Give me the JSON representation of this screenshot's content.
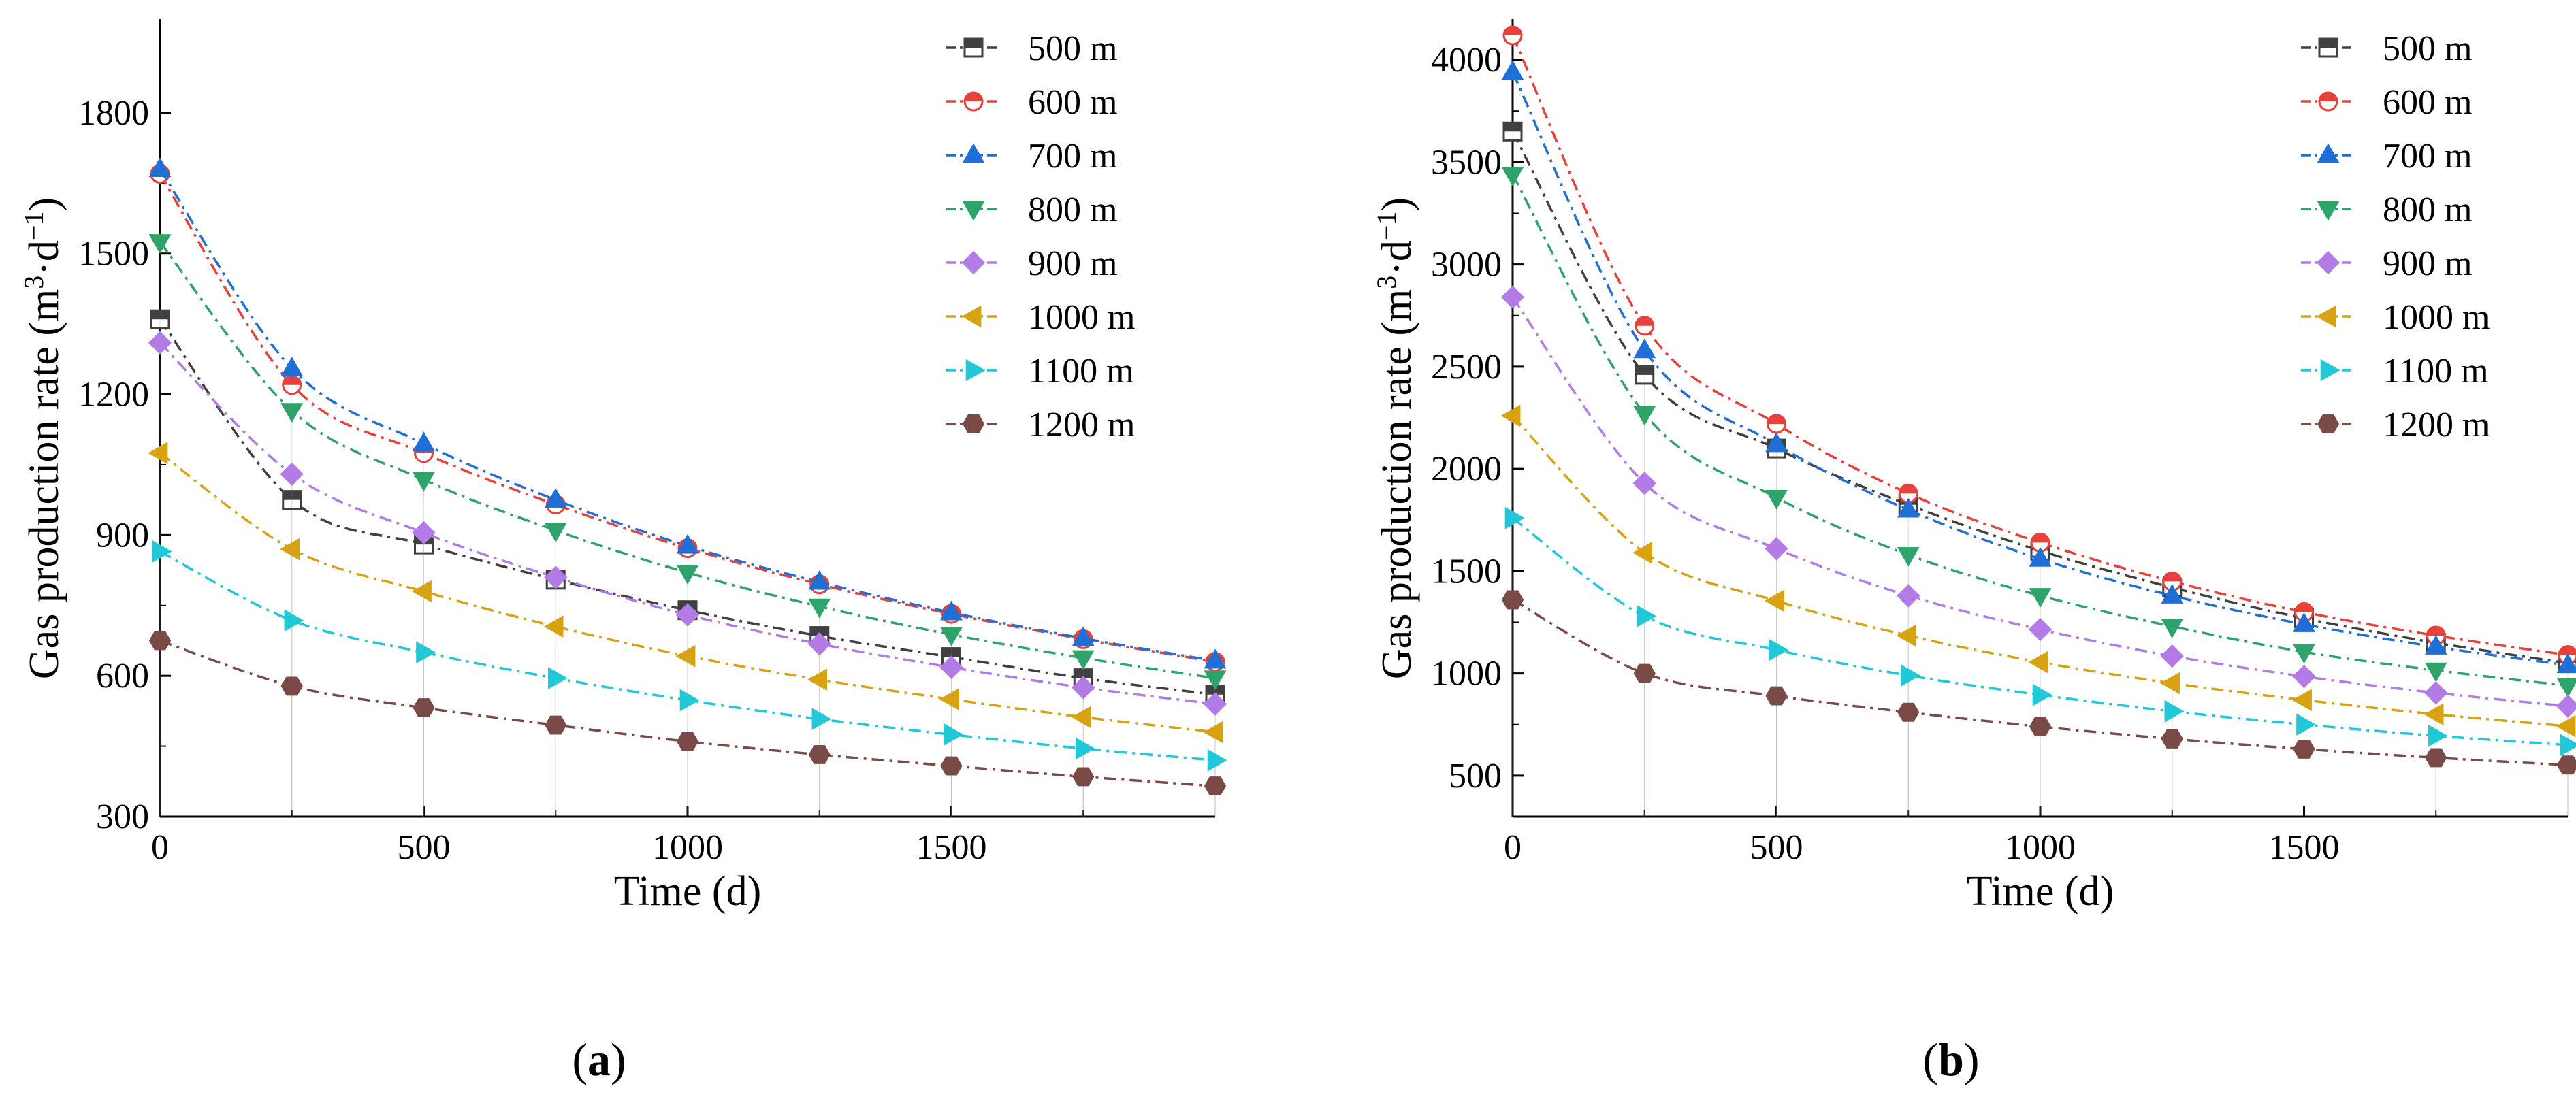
{
  "figure": {
    "panels": [
      "(a)",
      "(b)"
    ]
  },
  "chart_data": [
    {
      "type": "line",
      "panel_label": "(a)",
      "xlabel": "Time (d)",
      "ylabel_prefix": "Gas production rate (m",
      "ylabel_sup1": "3",
      "ylabel_mid": "·d",
      "ylabel_sup2": "−1",
      "ylabel_suffix": ")",
      "xlim": [
        0,
        2000
      ],
      "ylim": [
        300,
        2000
      ],
      "xticks": [
        0,
        500,
        1000,
        1500
      ],
      "yticks": [
        300,
        600,
        900,
        1200,
        1500,
        1800
      ],
      "x": [
        0,
        250,
        500,
        750,
        1000,
        1250,
        1500,
        1750,
        2000
      ],
      "series": [
        {
          "name": "500 m",
          "color": "#404040",
          "marker": "square",
          "values": [
            1360,
            975,
            880,
            805,
            740,
            685,
            640,
            595,
            560
          ]
        },
        {
          "name": "600 m",
          "color": "#e8403a",
          "marker": "circle",
          "values": [
            1670,
            1220,
            1075,
            965,
            872,
            795,
            732,
            678,
            630
          ]
        },
        {
          "name": "700 m",
          "color": "#1f6fd6",
          "marker": "triangle-up",
          "values": [
            1680,
            1255,
            1095,
            975,
            877,
            800,
            735,
            680,
            632
          ]
        },
        {
          "name": "800 m",
          "color": "#2ea36a",
          "marker": "triangle-down",
          "values": [
            1525,
            1165,
            1018,
            910,
            820,
            748,
            688,
            638,
            595
          ]
        },
        {
          "name": "900 m",
          "color": "#b27be6",
          "marker": "diamond",
          "values": [
            1310,
            1030,
            905,
            810,
            730,
            668,
            618,
            575,
            540
          ]
        },
        {
          "name": "1000 m",
          "color": "#d8a312",
          "marker": "triangle-left",
          "values": [
            1075,
            870,
            780,
            705,
            642,
            592,
            550,
            512,
            480
          ]
        },
        {
          "name": "1100 m",
          "color": "#20c8d8",
          "marker": "triangle-right",
          "values": [
            865,
            718,
            650,
            595,
            548,
            508,
            475,
            445,
            420
          ]
        },
        {
          "name": "1200 m",
          "color": "#7a4a46",
          "marker": "hexagon",
          "values": [
            675,
            578,
            532,
            495,
            460,
            432,
            408,
            385,
            365
          ]
        }
      ]
    },
    {
      "type": "line",
      "panel_label": "(b)",
      "xlabel": "Time (d)",
      "ylabel_prefix": "Gas production rate (m",
      "ylabel_sup1": "3",
      "ylabel_mid": "·d",
      "ylabel_sup2": "−1",
      "ylabel_suffix": ")",
      "xlim": [
        0,
        2000
      ],
      "ylim": [
        300,
        4200
      ],
      "xticks": [
        0,
        500,
        1000,
        1500
      ],
      "yticks": [
        500,
        1000,
        1500,
        2000,
        2500,
        3000,
        3500,
        4000
      ],
      "x": [
        0,
        250,
        500,
        750,
        1000,
        1250,
        1500,
        1750,
        2000
      ],
      "series": [
        {
          "name": "500 m",
          "color": "#404040",
          "marker": "square",
          "values": [
            3650,
            2460,
            2100,
            1825,
            1600,
            1420,
            1270,
            1150,
            1050
          ]
        },
        {
          "name": "600 m",
          "color": "#e8403a",
          "marker": "circle",
          "values": [
            4120,
            2700,
            2220,
            1880,
            1640,
            1450,
            1300,
            1185,
            1090
          ]
        },
        {
          "name": "700 m",
          "color": "#1f6fd6",
          "marker": "triangle-up",
          "values": [
            3940,
            2580,
            2120,
            1800,
            1560,
            1380,
            1240,
            1130,
            1040
          ]
        },
        {
          "name": "800 m",
          "color": "#2ea36a",
          "marker": "triangle-down",
          "values": [
            3440,
            2270,
            1860,
            1580,
            1380,
            1230,
            1105,
            1015,
            940
          ]
        },
        {
          "name": "900 m",
          "color": "#b27be6",
          "marker": "diamond",
          "values": [
            2840,
            1930,
            1610,
            1380,
            1215,
            1085,
            985,
            905,
            840
          ]
        },
        {
          "name": "1000 m",
          "color": "#d8a312",
          "marker": "triangle-left",
          "values": [
            2260,
            1590,
            1355,
            1185,
            1055,
            952,
            870,
            800,
            742
          ]
        },
        {
          "name": "1100 m",
          "color": "#20c8d8",
          "marker": "triangle-right",
          "values": [
            1760,
            1280,
            1115,
            990,
            895,
            815,
            750,
            695,
            650
          ]
        },
        {
          "name": "1200 m",
          "color": "#7a4a46",
          "marker": "hexagon",
          "values": [
            1360,
            1000,
            890,
            810,
            740,
            680,
            630,
            588,
            552
          ]
        }
      ]
    }
  ]
}
